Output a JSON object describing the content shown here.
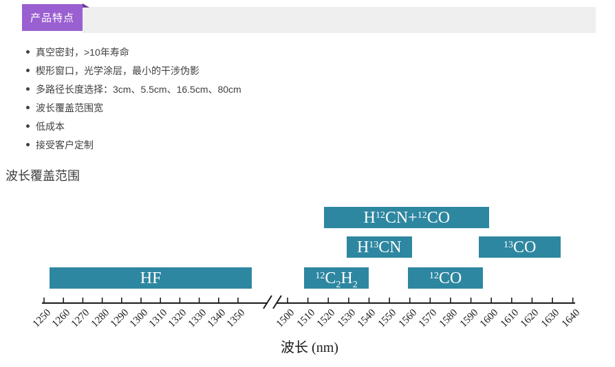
{
  "header": {
    "badge_label": "产品特点",
    "badge_color": "#9a5fd0",
    "badge_fold_color": "#6e3c9c",
    "bar_color": "#f0eff0"
  },
  "features": {
    "items": [
      "真空密封，>10年寿命",
      "楔形窗口，光学涂层，最小的干涉伪影",
      "多路径长度选择：3cm、5.5cm、16.5cm、80cm",
      "波长覆盖范围宽",
      "低成本",
      "接受客户定制"
    ]
  },
  "section_title": "波长覆盖范围",
  "chart_data": {
    "type": "bar",
    "subtype": "horizontal-wavelength-range-bars",
    "title": "波长覆盖范围",
    "xlabel": "波长 (nm)",
    "x_unit": "nm",
    "bar_color": "#2e87a1",
    "bar_label_color": "#ffffff",
    "axis_color": "#1a1a1a",
    "grid": false,
    "axis_break_between": [
      1350,
      1500
    ],
    "x_ticks_left": [
      1250,
      1260,
      1270,
      1280,
      1290,
      1300,
      1310,
      1320,
      1330,
      1340,
      1350
    ],
    "x_ticks_right": [
      1500,
      1510,
      1520,
      1530,
      1540,
      1550,
      1560,
      1570,
      1580,
      1590,
      1600,
      1610,
      1620,
      1630,
      1640
    ],
    "series": [
      {
        "name": "HF",
        "display": [
          [
            "HF"
          ]
        ],
        "range_nm": [
          1253,
          1357
        ],
        "row": 2
      },
      {
        "name": "12C2H2",
        "display": [
          [
            "12",
            "sup"
          ],
          [
            "C"
          ],
          [
            "2",
            "sub"
          ],
          [
            "H"
          ],
          [
            "2",
            "sub"
          ]
        ],
        "range_nm": [
          1508,
          1540
        ],
        "row": 2
      },
      {
        "name": "H12CN+12CO",
        "display": [
          [
            "H"
          ],
          [
            "12",
            "sup"
          ],
          [
            "CN+"
          ],
          [
            "12",
            "sup"
          ],
          [
            "CO"
          ]
        ],
        "range_nm": [
          1518,
          1599
        ],
        "row": 0
      },
      {
        "name": "H13CN",
        "display": [
          [
            "H"
          ],
          [
            "13",
            "sup"
          ],
          [
            "CN"
          ]
        ],
        "range_nm": [
          1529,
          1561
        ],
        "row": 1
      },
      {
        "name": "12CO",
        "display": [
          [
            "12",
            "sup"
          ],
          [
            "CO"
          ]
        ],
        "range_nm": [
          1559,
          1596
        ],
        "row": 2
      },
      {
        "name": "13CO",
        "display": [
          [
            "13",
            "sup"
          ],
          [
            "CO"
          ]
        ],
        "range_nm": [
          1594,
          1634
        ],
        "row": 1
      }
    ]
  }
}
